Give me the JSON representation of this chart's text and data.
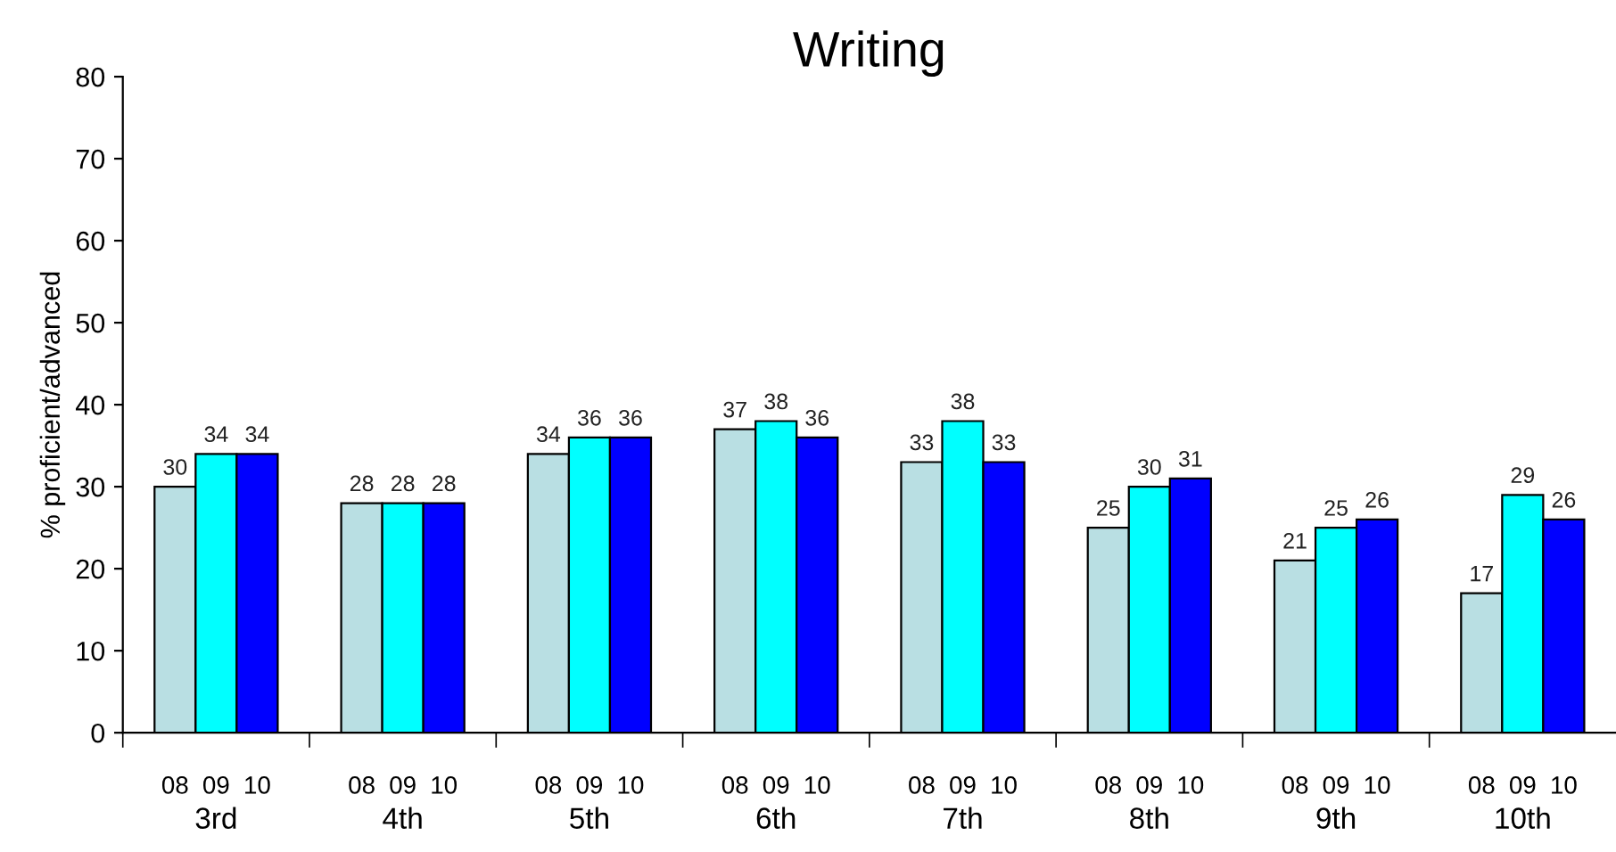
{
  "chart_data": {
    "type": "bar",
    "title": "Writing",
    "ylabel": "% proficient/advanced",
    "categories": [
      "3rd",
      "4th",
      "5th",
      "6th",
      "7th",
      "8th",
      "9th",
      "10th"
    ],
    "series": [
      {
        "name": "08",
        "color": "#b9dfe3",
        "values": [
          30,
          28,
          34,
          37,
          33,
          25,
          21,
          17
        ]
      },
      {
        "name": "09",
        "color": "#00ffff",
        "values": [
          34,
          28,
          36,
          38,
          38,
          30,
          25,
          29
        ]
      },
      {
        "name": "10",
        "color": "#0000ff",
        "values": [
          34,
          28,
          36,
          36,
          33,
          31,
          26,
          26
        ]
      }
    ],
    "ylim": [
      0,
      80
    ],
    "yticks": [
      0,
      10,
      20,
      30,
      40,
      50,
      60,
      70,
      80
    ],
    "grid": false,
    "legend": false,
    "data_labels": true
  }
}
